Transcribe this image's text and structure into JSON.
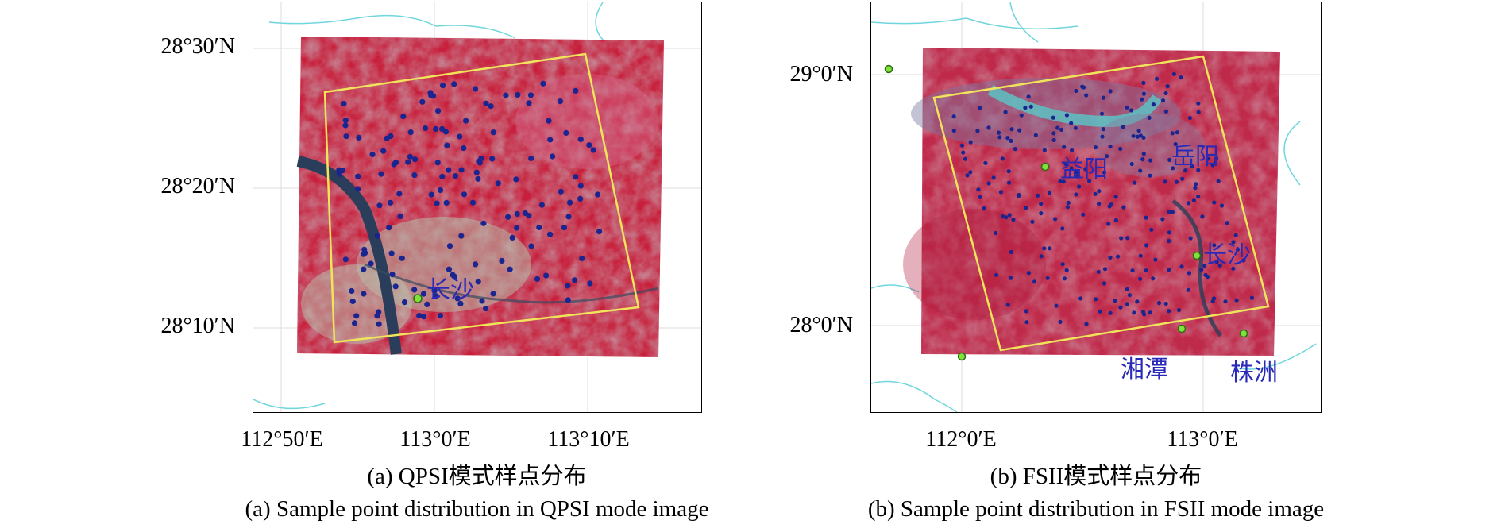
{
  "panels": [
    {
      "id": "a",
      "lat_labels": [
        "28°30′N",
        "28°20′N",
        "28°10′N"
      ],
      "lon_labels": [
        "112°50′E",
        "113°0′E",
        "113°10′E"
      ],
      "place_labels": [
        "长沙"
      ],
      "caption_cn": "(a) QPSI模式样点分布",
      "caption_en": "(a) Sample point distribution in QPSI mode image"
    },
    {
      "id": "b",
      "lat_labels": [
        "29°0′N",
        "28°0′N"
      ],
      "lon_labels": [
        "112°0′E",
        "113°0′E"
      ],
      "place_labels": [
        "益阳",
        "岳阳",
        "长沙",
        "湘潭",
        "株洲"
      ],
      "caption_cn": "(b) FSII模式样点分布",
      "caption_en": "(b) Sample point distribution in FSII mode image"
    }
  ],
  "colors": {
    "imagery_red": "#c8203c",
    "imagery_pink": "#d46a8c",
    "sample_point": "#1a2590",
    "footprint": "#f0e45a",
    "city_marker": "#7ee23a",
    "river_line": "#6fd6dc",
    "place_label": "#2a2ab8"
  }
}
